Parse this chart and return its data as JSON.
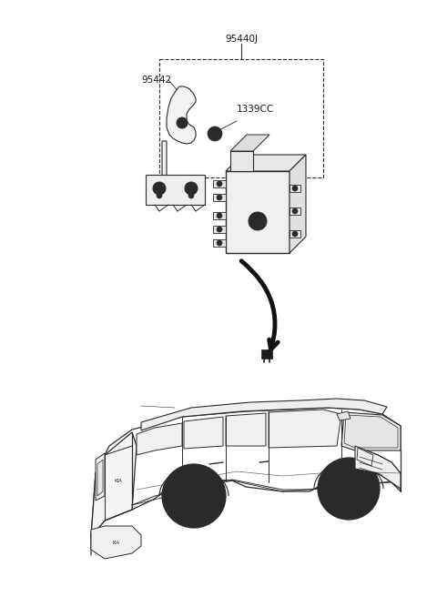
{
  "bg_color": "#ffffff",
  "line_color": "#2a2a2a",
  "label_color": "#1a1a1a",
  "label_fontsize": 7.5,
  "labels": {
    "part_main": "95440J",
    "part_bracket": "95442",
    "part_bolt": "1339CC"
  },
  "fig_width": 4.8,
  "fig_height": 6.56,
  "dpi": 100
}
